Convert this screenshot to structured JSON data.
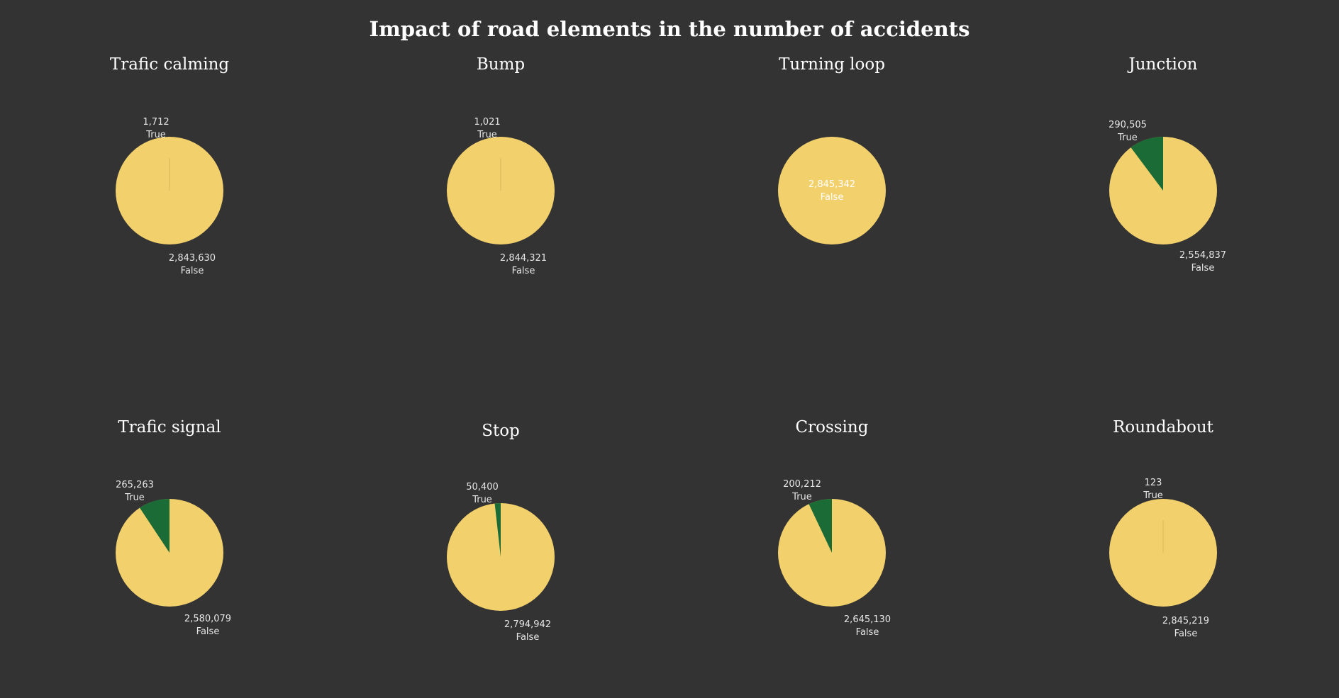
{
  "title": "Impact of road elements in the number of accidents",
  "colors": {
    "background": "#333333",
    "true": "#1a6b35",
    "false": "#f2d06b"
  },
  "chart_data": [
    {
      "type": "pie",
      "title": "Trafic calming",
      "categories": [
        "True",
        "False"
      ],
      "values": [
        1712,
        2843630
      ],
      "labels": [
        "1,712",
        "2,843,630"
      ]
    },
    {
      "type": "pie",
      "title": "Bump",
      "categories": [
        "True",
        "False"
      ],
      "values": [
        1021,
        2844321
      ],
      "labels": [
        "1,021",
        "2,844,321"
      ]
    },
    {
      "type": "pie",
      "title": "Turning loop",
      "categories": [
        "False"
      ],
      "values": [
        2845342
      ],
      "labels": [
        "2,845,342"
      ]
    },
    {
      "type": "pie",
      "title": "Junction",
      "categories": [
        "True",
        "False"
      ],
      "values": [
        290505,
        2554837
      ],
      "labels": [
        "290,505",
        "2,554,837"
      ]
    },
    {
      "type": "pie",
      "title": "Trafic signal",
      "categories": [
        "True",
        "False"
      ],
      "values": [
        265263,
        2580079
      ],
      "labels": [
        "265,263",
        "2,580,079"
      ]
    },
    {
      "type": "pie",
      "title": "Stop",
      "categories": [
        "True",
        "False"
      ],
      "values": [
        50400,
        2794942
      ],
      "labels": [
        "50,400",
        "2,794,942"
      ]
    },
    {
      "type": "pie",
      "title": "Crossing",
      "categories": [
        "True",
        "False"
      ],
      "values": [
        200212,
        2645130
      ],
      "labels": [
        "200,212",
        "2,645,130"
      ]
    },
    {
      "type": "pie",
      "title": "Roundabout",
      "categories": [
        "True",
        "False"
      ],
      "values": [
        123,
        2845219
      ],
      "labels": [
        "123",
        "2,845,219"
      ]
    }
  ]
}
